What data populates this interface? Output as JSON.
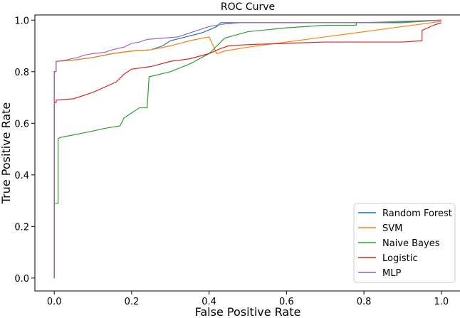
{
  "chart_data": {
    "type": "line",
    "title": "ROC Curve",
    "xlabel": "False Positive Rate",
    "ylabel": "True Positive Rate",
    "xlim": [
      -0.05,
      1.05
    ],
    "ylim": [
      -0.05,
      1.02
    ],
    "xticks": [
      0.0,
      0.2,
      0.4,
      0.6,
      0.8,
      1.0
    ],
    "xtick_labels": [
      "0.0",
      "0.2",
      "0.4",
      "0.6",
      "0.8",
      "1.0"
    ],
    "yticks": [
      0.0,
      0.2,
      0.4,
      0.6,
      0.8,
      1.0
    ],
    "ytick_labels": [
      "0.0",
      "0.2",
      "0.4",
      "0.6",
      "0.8",
      "1.0"
    ],
    "grid": false,
    "legend_position": "bottom-right",
    "series": [
      {
        "name": "Random Forest",
        "color": "#1f77b4",
        "x": [
          0.0,
          0.0,
          0.005,
          0.005,
          0.05,
          0.1,
          0.15,
          0.2,
          0.25,
          0.28,
          0.3,
          0.34,
          0.38,
          0.42,
          0.43,
          0.44,
          0.5,
          0.6,
          0.8,
          0.95,
          1.0
        ],
        "y": [
          0.0,
          0.8,
          0.8,
          0.84,
          0.845,
          0.855,
          0.87,
          0.88,
          0.885,
          0.9,
          0.92,
          0.935,
          0.95,
          0.975,
          0.99,
          0.99,
          0.99,
          0.99,
          0.99,
          0.995,
          1.0
        ]
      },
      {
        "name": "SVM",
        "color": "#ff7f0e",
        "x": [
          0.0,
          0.0,
          0.005,
          0.005,
          0.05,
          0.1,
          0.15,
          0.2,
          0.25,
          0.3,
          0.35,
          0.4,
          0.42,
          0.44,
          0.5,
          0.6,
          0.7,
          0.8,
          0.9,
          1.0
        ],
        "y": [
          0.0,
          0.8,
          0.8,
          0.84,
          0.845,
          0.855,
          0.87,
          0.88,
          0.885,
          0.9,
          0.92,
          0.935,
          0.87,
          0.88,
          0.895,
          0.915,
          0.935,
          0.955,
          0.975,
          0.995
        ]
      },
      {
        "name": "Naive Bayes",
        "color": "#2ca02c",
        "x": [
          0.0,
          0.0,
          0.01,
          0.01,
          0.015,
          0.05,
          0.1,
          0.13,
          0.17,
          0.18,
          0.2,
          0.22,
          0.24,
          0.245,
          0.245,
          0.3,
          0.35,
          0.4,
          0.42,
          0.43,
          0.44,
          0.5,
          0.6,
          0.7,
          0.78,
          0.78,
          0.9,
          0.95,
          1.0
        ],
        "y": [
          0.0,
          0.29,
          0.29,
          0.54,
          0.545,
          0.555,
          0.57,
          0.58,
          0.59,
          0.62,
          0.64,
          0.66,
          0.66,
          0.78,
          0.78,
          0.8,
          0.83,
          0.87,
          0.9,
          0.915,
          0.93,
          0.955,
          0.97,
          0.98,
          0.98,
          0.99,
          0.99,
          0.995,
          1.0
        ]
      },
      {
        "name": "Logistic",
        "color": "#d62728",
        "x": [
          0.0,
          0.0,
          0.005,
          0.005,
          0.05,
          0.1,
          0.13,
          0.16,
          0.18,
          0.2,
          0.25,
          0.3,
          0.35,
          0.4,
          0.43,
          0.45,
          0.5,
          0.6,
          0.7,
          0.8,
          0.9,
          0.95,
          0.95,
          0.98,
          1.0
        ],
        "y": [
          0.0,
          0.68,
          0.68,
          0.69,
          0.695,
          0.72,
          0.74,
          0.76,
          0.79,
          0.81,
          0.82,
          0.84,
          0.85,
          0.87,
          0.89,
          0.9,
          0.905,
          0.91,
          0.915,
          0.915,
          0.915,
          0.92,
          0.96,
          0.98,
          0.99
        ]
      },
      {
        "name": "MLP",
        "color": "#9467bd",
        "x": [
          0.0,
          0.0,
          0.005,
          0.005,
          0.03,
          0.06,
          0.08,
          0.1,
          0.13,
          0.15,
          0.18,
          0.2,
          0.22,
          0.24,
          0.28,
          0.32,
          0.36,
          0.4,
          0.44,
          0.48,
          0.6,
          0.8,
          1.0
        ],
        "y": [
          0.0,
          0.8,
          0.8,
          0.84,
          0.845,
          0.855,
          0.865,
          0.87,
          0.875,
          0.885,
          0.895,
          0.91,
          0.915,
          0.925,
          0.93,
          0.935,
          0.955,
          0.975,
          0.985,
          0.99,
          0.99,
          0.99,
          1.0
        ]
      }
    ]
  }
}
